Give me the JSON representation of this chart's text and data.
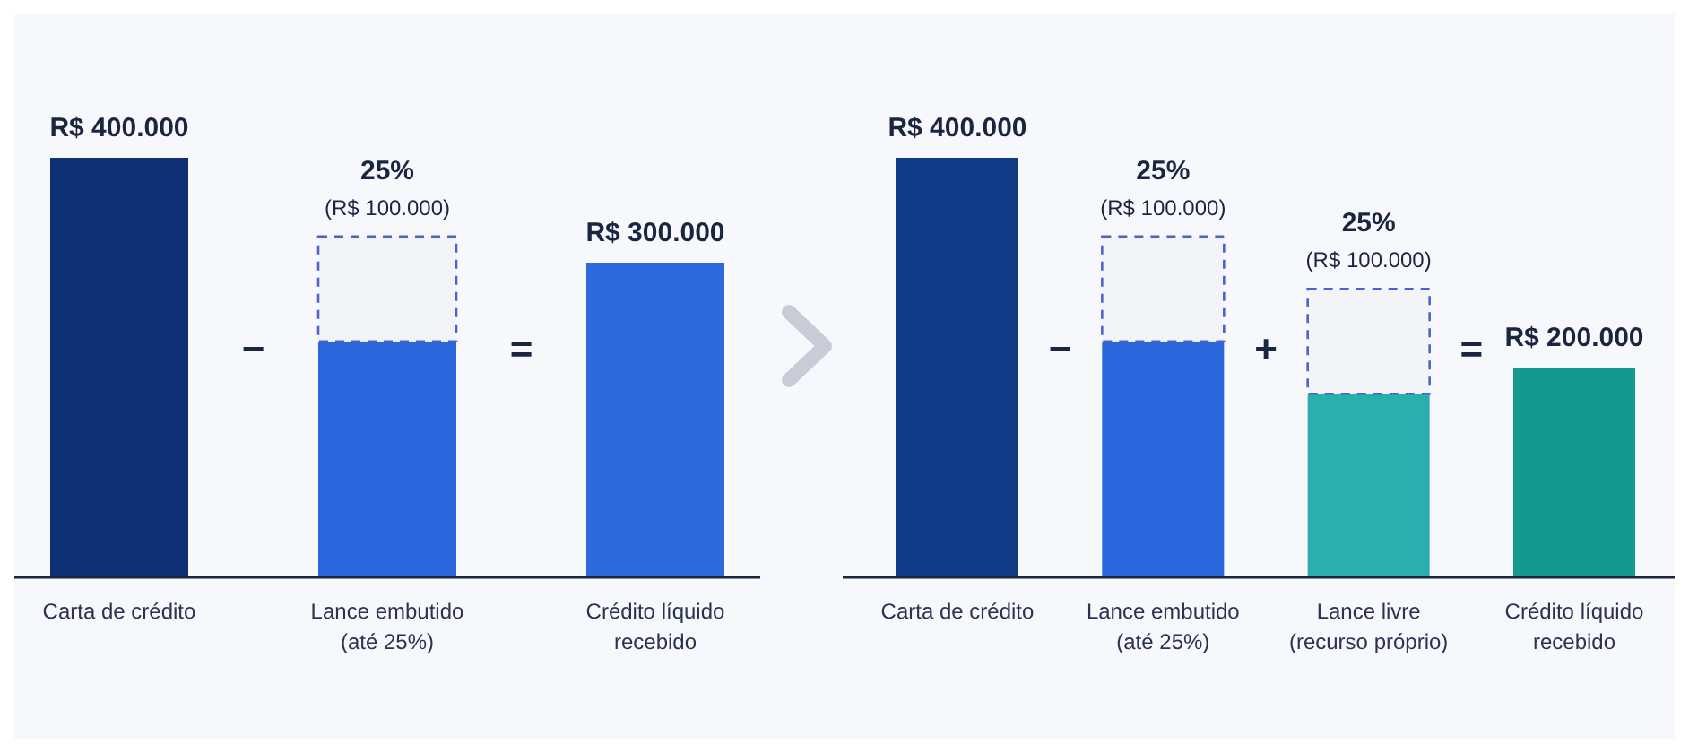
{
  "chart_data": [
    {
      "type": "bar",
      "stacked": true,
      "categories": [
        "Carta de crédito",
        "Lance embutido\n(até 25%)",
        "Crédito líquido\nrecebido"
      ],
      "series": [
        {
          "colors": [
            "#0e2f74",
            "#2a66dc",
            "#2d69dc"
          ],
          "values": [
            400000,
            225000,
            300000
          ],
          "value_labels": [
            "R$ 400.000",
            null,
            "R$ 300.000"
          ]
        },
        {
          "color": "#f3f4f8",
          "line_style": "dashed",
          "values": [
            null,
            100000,
            null
          ],
          "value_labels": [
            null,
            "25%\n(R$ 100.000)",
            null
          ]
        }
      ],
      "annotations": [
        "−",
        "="
      ]
    },
    {
      "type": "bar",
      "stacked": true,
      "categories": [
        "Carta de crédito",
        "Lance embutido\n(até 25%)",
        "Lance livre\n(recurso próprio)",
        "Crédito líquido\nrecebido"
      ],
      "series": [
        {
          "colors": [
            "#0f3a85",
            "#2a66dc",
            "#2aaeae",
            "#14998f"
          ],
          "values": [
            400000,
            225000,
            175000,
            200000
          ],
          "value_labels": [
            "R$ 400.000",
            null,
            null,
            "R$ 200.000"
          ]
        },
        {
          "color": "#f3f4f8",
          "line_style": "dashed",
          "values": [
            null,
            100000,
            100000,
            null
          ],
          "value_labels": [
            null,
            "25%\n(R$ 100.000)",
            "25%\n(R$ 100.000)",
            null
          ]
        }
      ],
      "annotations": [
        "−",
        "+",
        "="
      ]
    }
  ]
}
